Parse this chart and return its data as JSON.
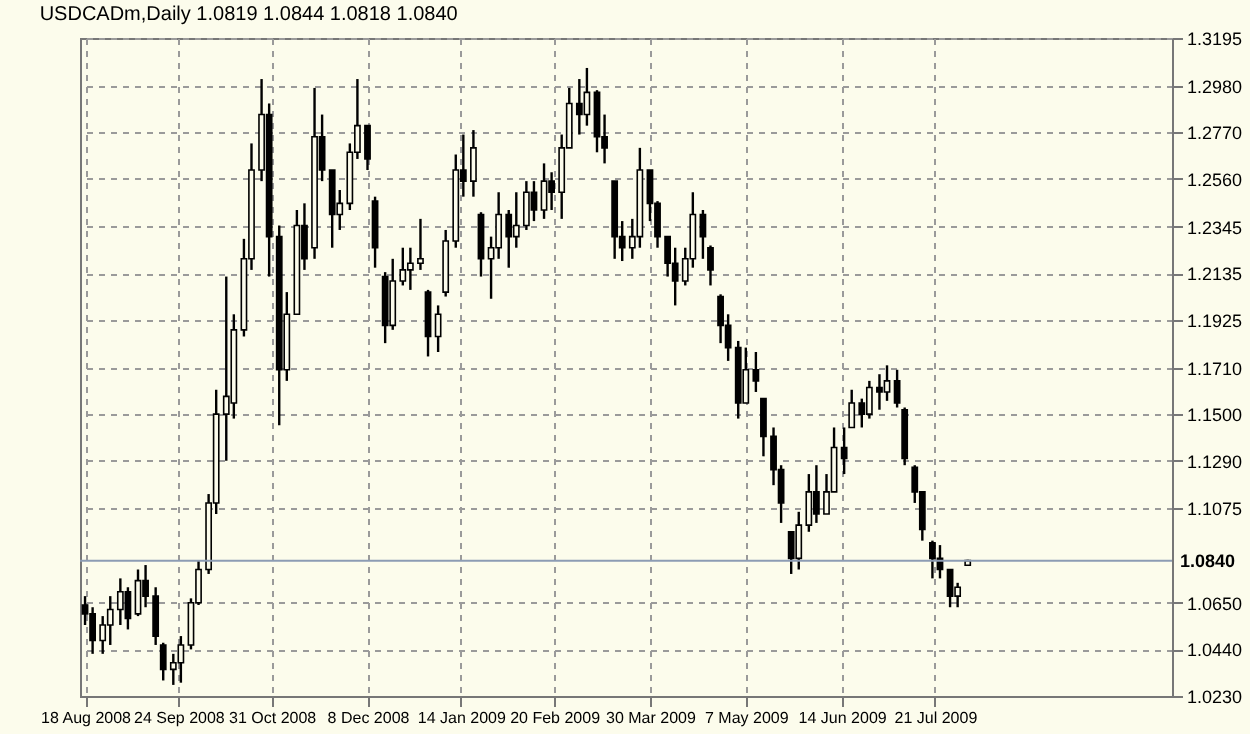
{
  "chart_data": {
    "type": "candlestick",
    "title": "USDCADm,Daily  1.0819 1.0844 1.0818 1.0840",
    "color": "#000000",
    "grid": true,
    "x": [
      "2008-08-18",
      "2008-08-21",
      "2008-08-25",
      "2008-08-28",
      "2008-09-01",
      "2008-09-04",
      "2008-09-08",
      "2008-09-11",
      "2008-09-15",
      "2008-09-18",
      "2008-09-22",
      "2008-09-25",
      "2008-09-29",
      "2008-10-02",
      "2008-10-06",
      "2008-10-09",
      "2008-10-13",
      "2008-10-16",
      "2008-10-20",
      "2008-10-23",
      "2008-10-27",
      "2008-10-30",
      "2008-11-03",
      "2008-11-06",
      "2008-11-10",
      "2008-11-13",
      "2008-11-17",
      "2008-11-20",
      "2008-11-24",
      "2008-11-27",
      "2008-12-01",
      "2008-12-04",
      "2008-12-08",
      "2008-12-11",
      "2008-12-15",
      "2008-12-18",
      "2008-12-22",
      "2008-12-25",
      "2008-12-29",
      "2009-01-01",
      "2009-01-05",
      "2009-01-08",
      "2009-01-12",
      "2009-01-15",
      "2009-01-19",
      "2009-01-22",
      "2009-01-26",
      "2009-01-29",
      "2009-02-02",
      "2009-02-05",
      "2009-02-09",
      "2009-02-12",
      "2009-02-16",
      "2009-02-19",
      "2009-02-23",
      "2009-02-26",
      "2009-03-02",
      "2009-03-05",
      "2009-03-09",
      "2009-03-12",
      "2009-03-16",
      "2009-03-19",
      "2009-03-23",
      "2009-03-26",
      "2009-03-30",
      "2009-04-02",
      "2009-04-06",
      "2009-04-09",
      "2009-04-13",
      "2009-04-16",
      "2009-04-20",
      "2009-04-23",
      "2009-04-27",
      "2009-04-30",
      "2009-05-04",
      "2009-05-07",
      "2009-05-11",
      "2009-05-14",
      "2009-05-18",
      "2009-05-21",
      "2009-05-25",
      "2009-05-28",
      "2009-06-01",
      "2009-06-04",
      "2009-06-08",
      "2009-06-11",
      "2009-06-15",
      "2009-06-18",
      "2009-06-22",
      "2009-06-25",
      "2009-06-29",
      "2009-07-02",
      "2009-07-06",
      "2009-07-09",
      "2009-07-13",
      "2009-07-16",
      "2009-07-20",
      "2009-07-23",
      "2009-07-27",
      "2009-07-30",
      "2009-08-03"
    ],
    "ohlc": [
      [
        1.064,
        1.068,
        1.055,
        1.06
      ],
      [
        1.06,
        1.063,
        1.042,
        1.048
      ],
      [
        1.048,
        1.059,
        1.042,
        1.055
      ],
      [
        1.055,
        1.068,
        1.046,
        1.062
      ],
      [
        1.062,
        1.076,
        1.055,
        1.07
      ],
      [
        1.07,
        1.072,
        1.053,
        1.058
      ],
      [
        1.06,
        1.08,
        1.059,
        1.075
      ],
      [
        1.075,
        1.082,
        1.063,
        1.068
      ],
      [
        1.068,
        1.072,
        1.046,
        1.05
      ],
      [
        1.046,
        1.047,
        1.03,
        1.035
      ],
      [
        1.035,
        1.042,
        1.028,
        1.038
      ],
      [
        1.038,
        1.05,
        1.029,
        1.046
      ],
      [
        1.046,
        1.067,
        1.044,
        1.065
      ],
      [
        1.065,
        1.084,
        1.064,
        1.08
      ],
      [
        1.08,
        1.114,
        1.078,
        1.11
      ],
      [
        1.11,
        1.161,
        1.105,
        1.15
      ],
      [
        1.15,
        1.212,
        1.129,
        1.158
      ],
      [
        1.155,
        1.195,
        1.148,
        1.188
      ],
      [
        1.188,
        1.229,
        1.185,
        1.22
      ],
      [
        1.22,
        1.272,
        1.215,
        1.26
      ],
      [
        1.26,
        1.301,
        1.255,
        1.285
      ],
      [
        1.285,
        1.29,
        1.212,
        1.23
      ],
      [
        1.23,
        1.235,
        1.145,
        1.17
      ],
      [
        1.17,
        1.205,
        1.165,
        1.195
      ],
      [
        1.195,
        1.242,
        1.195,
        1.235
      ],
      [
        1.235,
        1.245,
        1.215,
        1.22
      ],
      [
        1.225,
        1.297,
        1.22,
        1.275
      ],
      [
        1.275,
        1.285,
        1.255,
        1.26
      ],
      [
        1.26,
        1.26,
        1.225,
        1.24
      ],
      [
        1.24,
        1.251,
        1.233,
        1.245
      ],
      [
        1.245,
        1.272,
        1.242,
        1.268
      ],
      [
        1.268,
        1.301,
        1.265,
        1.28
      ],
      [
        1.28,
        1.28,
        1.26,
        1.265
      ],
      [
        1.246,
        1.248,
        1.216,
        1.225
      ],
      [
        1.212,
        1.214,
        1.182,
        1.19
      ],
      [
        1.19,
        1.22,
        1.188,
        1.21
      ],
      [
        1.21,
        1.225,
        1.208,
        1.215
      ],
      [
        1.215,
        1.225,
        1.206,
        1.218
      ],
      [
        1.218,
        1.238,
        1.215,
        1.22
      ],
      [
        1.205,
        1.206,
        1.176,
        1.185
      ],
      [
        1.185,
        1.199,
        1.178,
        1.195
      ],
      [
        1.205,
        1.233,
        1.203,
        1.228
      ],
      [
        1.228,
        1.267,
        1.225,
        1.26
      ],
      [
        1.26,
        1.276,
        1.248,
        1.255
      ],
      [
        1.255,
        1.278,
        1.248,
        1.27
      ],
      [
        1.24,
        1.241,
        1.212,
        1.22
      ],
      [
        1.22,
        1.23,
        1.202,
        1.225
      ],
      [
        1.225,
        1.25,
        1.22,
        1.24
      ],
      [
        1.24,
        1.242,
        1.216,
        1.23
      ],
      [
        1.23,
        1.25,
        1.225,
        1.235
      ],
      [
        1.235,
        1.255,
        1.233,
        1.25
      ],
      [
        1.25,
        1.255,
        1.237,
        1.242
      ],
      [
        1.242,
        1.263,
        1.238,
        1.255
      ],
      [
        1.255,
        1.259,
        1.242,
        1.25
      ],
      [
        1.25,
        1.276,
        1.238,
        1.27
      ],
      [
        1.27,
        1.297,
        1.27,
        1.29
      ],
      [
        1.29,
        1.301,
        1.276,
        1.285
      ],
      [
        1.285,
        1.306,
        1.28,
        1.295
      ],
      [
        1.295,
        1.296,
        1.268,
        1.275
      ],
      [
        1.275,
        1.285,
        1.263,
        1.27
      ],
      [
        1.255,
        1.255,
        1.22,
        1.23
      ],
      [
        1.23,
        1.237,
        1.219,
        1.225
      ],
      [
        1.225,
        1.238,
        1.22,
        1.23
      ],
      [
        1.23,
        1.27,
        1.225,
        1.26
      ],
      [
        1.26,
        1.26,
        1.237,
        1.245
      ],
      [
        1.245,
        1.246,
        1.225,
        1.23
      ],
      [
        1.23,
        1.23,
        1.212,
        1.218
      ],
      [
        1.218,
        1.225,
        1.199,
        1.21
      ],
      [
        1.21,
        1.225,
        1.208,
        1.22
      ],
      [
        1.22,
        1.25,
        1.216,
        1.24
      ],
      [
        1.24,
        1.242,
        1.22,
        1.23
      ],
      [
        1.225,
        1.226,
        1.208,
        1.215
      ],
      [
        1.203,
        1.204,
        1.182,
        1.19
      ],
      [
        1.19,
        1.195,
        1.174,
        1.18
      ],
      [
        1.18,
        1.183,
        1.148,
        1.155
      ],
      [
        1.155,
        1.18,
        1.155,
        1.17
      ],
      [
        1.17,
        1.178,
        1.16,
        1.165
      ],
      [
        1.157,
        1.157,
        1.131,
        1.14
      ],
      [
        1.14,
        1.144,
        1.118,
        1.125
      ],
      [
        1.125,
        1.127,
        1.101,
        1.11
      ],
      [
        1.097,
        1.097,
        1.078,
        1.085
      ],
      [
        1.085,
        1.106,
        1.08,
        1.1
      ],
      [
        1.1,
        1.123,
        1.097,
        1.115
      ],
      [
        1.115,
        1.127,
        1.101,
        1.105
      ],
      [
        1.105,
        1.123,
        1.105,
        1.115
      ],
      [
        1.115,
        1.144,
        1.115,
        1.135
      ],
      [
        1.135,
        1.144,
        1.123,
        1.13
      ],
      [
        1.144,
        1.161,
        1.144,
        1.155
      ],
      [
        1.155,
        1.157,
        1.144,
        1.15
      ],
      [
        1.15,
        1.165,
        1.148,
        1.162
      ],
      [
        1.162,
        1.168,
        1.152,
        1.16
      ],
      [
        1.16,
        1.172,
        1.156,
        1.165
      ],
      [
        1.165,
        1.17,
        1.153,
        1.155
      ],
      [
        1.152,
        1.153,
        1.127,
        1.13
      ],
      [
        1.126,
        1.127,
        1.11,
        1.115
      ],
      [
        1.115,
        1.115,
        1.093,
        1.098
      ],
      [
        1.092,
        1.093,
        1.076,
        1.085
      ],
      [
        1.085,
        1.091,
        1.076,
        1.08
      ],
      [
        1.08,
        1.08,
        1.063,
        1.068
      ],
      [
        1.068,
        1.074,
        1.063,
        1.072
      ],
      [
        1.0819,
        1.0844,
        1.0818,
        1.084
      ]
    ],
    "xlim": [
      "2008-08-16",
      "2009-10-23"
    ],
    "xticks": [
      {
        "value": "2008-08-18",
        "label": "18 Aug 2008"
      },
      {
        "value": "2008-09-24",
        "label": "24 Sep 2008"
      },
      {
        "value": "2008-10-31",
        "label": "31 Oct 2008"
      },
      {
        "value": "2008-12-08",
        "label": "8 Dec 2008"
      },
      {
        "value": "2009-01-14",
        "label": "14 Jan 2009"
      },
      {
        "value": "2009-02-20",
        "label": "20 Feb 2009"
      },
      {
        "value": "2009-03-30",
        "label": "30 Mar 2009"
      },
      {
        "value": "2009-05-07",
        "label": "7 May 2009"
      },
      {
        "value": "2009-06-14",
        "label": "14 Jun 2009"
      },
      {
        "value": "2009-07-21",
        "label": "21 Jul 2009"
      }
    ],
    "ylim": [
      1.023,
      1.3195
    ],
    "yticks": [
      {
        "value": 1.023,
        "label": "1.0230"
      },
      {
        "value": 1.044,
        "label": "1.0440"
      },
      {
        "value": 1.065,
        "label": "1.0650"
      },
      {
        "value": 1.1075,
        "label": "1.1075"
      },
      {
        "value": 1.129,
        "label": "1.1290"
      },
      {
        "value": 1.15,
        "label": "1.1500"
      },
      {
        "value": 1.171,
        "label": "1.1710"
      },
      {
        "value": 1.1925,
        "label": "1.1925"
      },
      {
        "value": 1.2135,
        "label": "1.2135"
      },
      {
        "value": 1.2345,
        "label": "1.2345"
      },
      {
        "value": 1.256,
        "label": "1.2560"
      },
      {
        "value": 1.277,
        "label": "1.2770"
      },
      {
        "value": 1.298,
        "label": "1.2980"
      },
      {
        "value": 1.3195,
        "label": "1.3195"
      }
    ],
    "ref_lines": [
      {
        "axis": "y",
        "value": 1.084,
        "label": "1.0840",
        "color": "#8c9cb4"
      }
    ]
  }
}
